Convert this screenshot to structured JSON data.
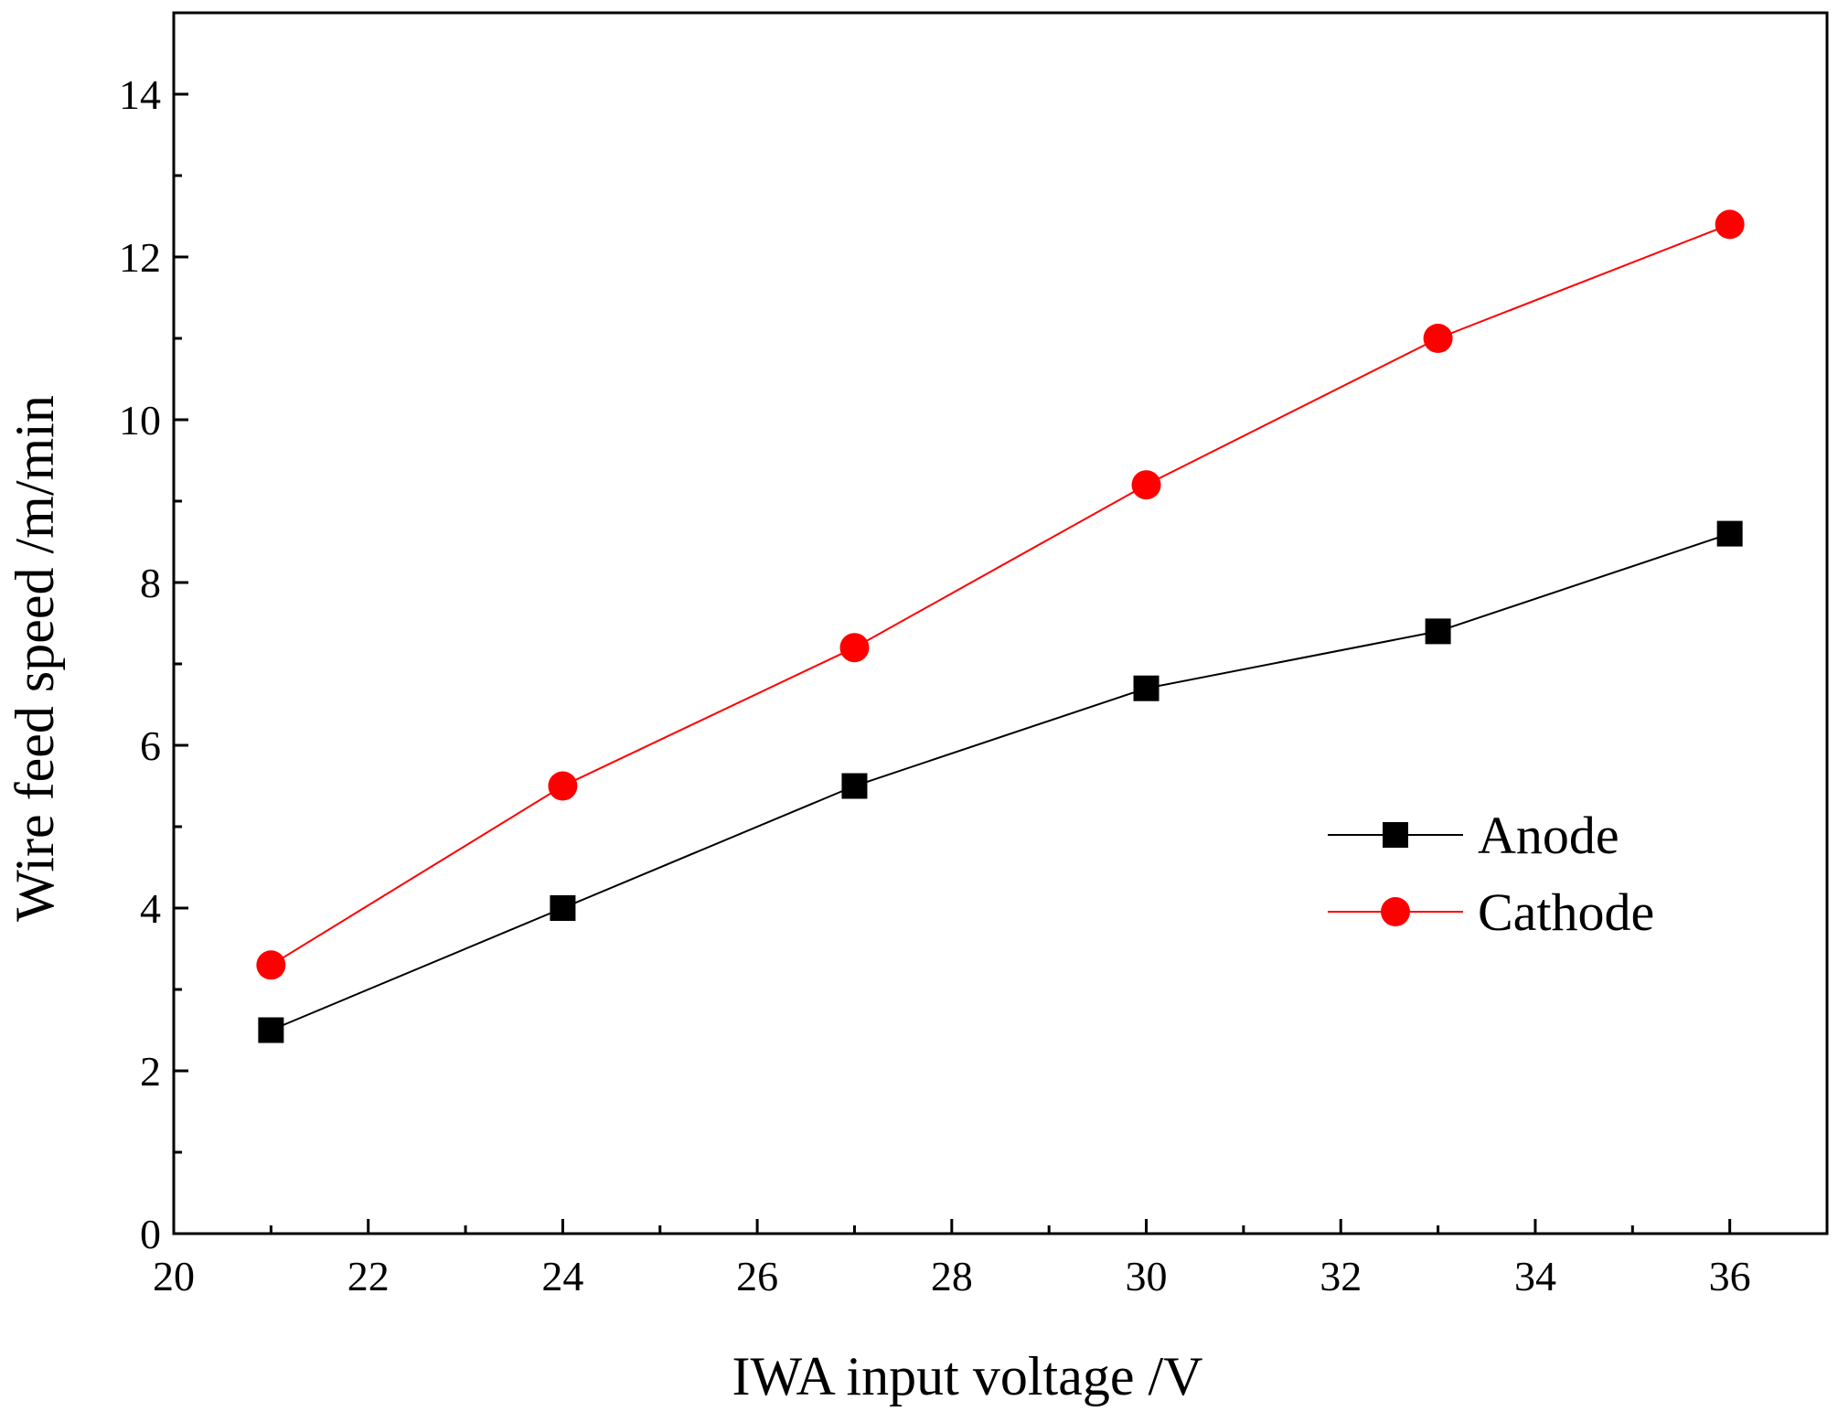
{
  "chart_data": {
    "type": "line",
    "xlabel": "IWA input voltage /V",
    "ylabel": "Wire feed speed /m/min",
    "xlim": [
      20,
      37
    ],
    "ylim": [
      0,
      15
    ],
    "xticks": [
      20,
      22,
      24,
      26,
      28,
      30,
      32,
      34,
      36
    ],
    "yticks": [
      0,
      2,
      4,
      6,
      8,
      10,
      12,
      14
    ],
    "grid": false,
    "legend_position": "right",
    "x": [
      21,
      24,
      27,
      30,
      33,
      36
    ],
    "series": [
      {
        "name": "Anode",
        "values": [
          2.5,
          4.0,
          5.5,
          6.7,
          7.4,
          8.6
        ],
        "color": "#000000",
        "marker": "square"
      },
      {
        "name": "Cathode",
        "values": [
          3.3,
          5.5,
          7.2,
          9.2,
          11.0,
          12.4
        ],
        "color": "#ff0000",
        "marker": "circle"
      }
    ]
  }
}
